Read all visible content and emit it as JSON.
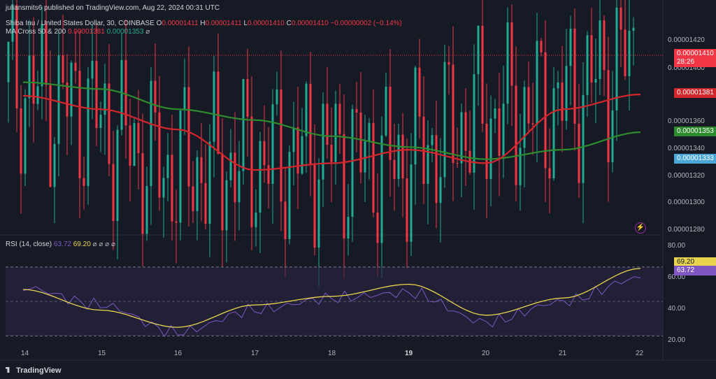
{
  "publish_line": "juliansmits6 published on TradingView.com, Aug 22, 2024 00:31 UTC",
  "symbol_line": "Shiba Inu / United States Dollar, 30, COINBASE",
  "ohlc": {
    "o_label": "O",
    "o": "0.00001411",
    "h_label": "H",
    "h": "0.00001411",
    "l_label": "L",
    "l": "0.00001410",
    "c_label": "C",
    "c": "0.00001410",
    "change": "−0.00000002 (−0.14%)"
  },
  "ma_indicator": {
    "name": "MA Cross 50 & 200",
    "fast": "0.00001381",
    "slow": "0.00001353",
    "eye": "⌀"
  },
  "rsi_indicator": {
    "name": "RSI (14, close)",
    "rsi": "63.72",
    "rsi_ma": "69.20",
    "extra": "⌀ ⌀ ⌀ ⌀"
  },
  "price_axis": [
    "0.00001420",
    "0.00001400",
    "0.00001360",
    "0.00001340",
    "0.00001320",
    "0.00001300",
    "0.00001280"
  ],
  "price_labels": {
    "last": "0.00001410",
    "countdown": "28:26",
    "ma_fast": "0.00001381",
    "ma_slow": "0.00001353",
    "cross": "0.00001333"
  },
  "rsi_axis": [
    "80.00",
    "60.00",
    "40.00",
    "20.00"
  ],
  "rsi_labels": {
    "rsi_ma": "69.20",
    "rsi": "63.72"
  },
  "date_axis": [
    "14",
    "15",
    "16",
    "17",
    "18",
    "19",
    "20",
    "21",
    "22"
  ],
  "footer": "TradingView",
  "icon_names": {
    "bolt": "lightning-icon",
    "logo": "tradingview-logo-icon"
  },
  "colors": {
    "up": "#22ab94",
    "down": "#f23645",
    "ma_fast": "#d3262b",
    "ma_slow": "#2e8b2e",
    "rsi": "#7e57c2",
    "rsi_ma": "#e8d44d",
    "cross": "#4aa8d8"
  },
  "chart_data": [
    {
      "type": "line",
      "title": "Shiba Inu / United States Dollar, 30, COINBASE",
      "x": [
        "14",
        "15",
        "16",
        "17",
        "18",
        "19",
        "20",
        "21",
        "22"
      ],
      "series": [
        {
          "name": "Price (close)",
          "values": [
            1.39e-05,
            1.368e-05,
            1.325e-05,
            1.33e-05,
            1.337e-05,
            1.33e-05,
            1.365e-05,
            1.372e-05,
            1.41e-05
          ]
        },
        {
          "name": "MA 50",
          "values": [
            1.38e-05,
            1.37e-05,
            1.355e-05,
            1.325e-05,
            1.33e-05,
            1.34e-05,
            1.33e-05,
            1.37e-05,
            1.381e-05
          ]
        },
        {
          "name": "MA 200",
          "values": [
            1.39e-05,
            1.385e-05,
            1.37e-05,
            1.362e-05,
            1.35e-05,
            1.342e-05,
            1.333e-05,
            1.34e-05,
            1.353e-05
          ]
        }
      ],
      "ylim": [
        1.28e-05,
        1.425e-05
      ]
    },
    {
      "type": "line",
      "title": "RSI (14, close)",
      "x": [
        "14",
        "15",
        "16",
        "17",
        "18",
        "19",
        "20",
        "21",
        "22"
      ],
      "series": [
        {
          "name": "RSI",
          "values": [
            58,
            48,
            32,
            45,
            52,
            55,
            38,
            50,
            63.72
          ]
        },
        {
          "name": "RSI MA",
          "values": [
            57,
            45,
            35,
            48,
            53,
            60,
            42,
            52,
            69.2
          ]
        }
      ],
      "ylim": [
        20,
        85
      ]
    }
  ]
}
